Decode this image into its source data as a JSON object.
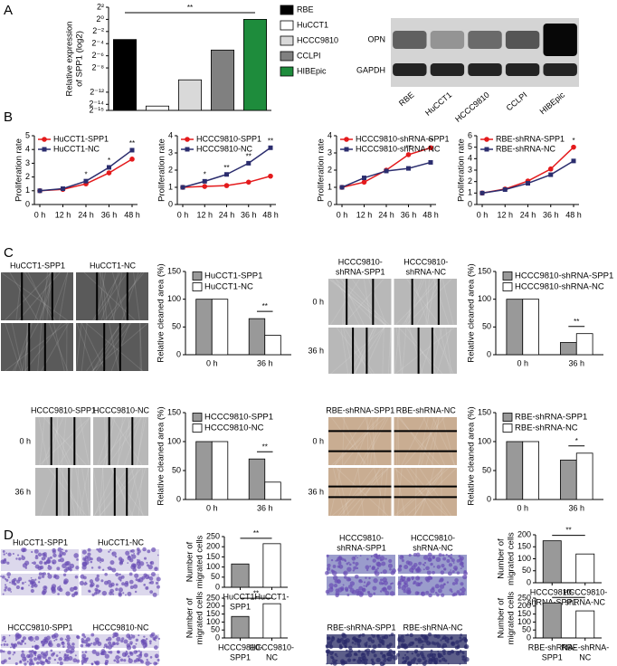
{
  "panel_labels": [
    "A",
    "B",
    "C",
    "D"
  ],
  "blot": {
    "rows": [
      "OPN",
      "GAPDH"
    ],
    "lanes": [
      "RBE",
      "HuCCT1",
      "HCCC9810",
      "CCLPI",
      "HIBEpic"
    ]
  },
  "chart_data": [
    {
      "type": "bar",
      "y_label": [
        "Relative expression",
        "of SPP1 (log2)"
      ],
      "categories": [
        "RBE",
        "HuCCT1",
        "HCCC9810",
        "CCLPI",
        "HIBEpic"
      ],
      "values": [
        0.1,
        5e-05,
        0.001,
        0.03,
        1.0
      ],
      "colors": [
        "#000000",
        "#ffffff",
        "#d9d9d9",
        "#808080",
        "#1e8c3c"
      ],
      "log_base": 2,
      "ylim": [
        3.0517578125e-05,
        4
      ],
      "yticks": [
        {
          "value": 4,
          "label": "2²"
        },
        {
          "value": 1,
          "label": "2⁰"
        },
        {
          "value": 0.25,
          "label": "2⁻²"
        },
        {
          "value": 0.0625,
          "label": "2⁻⁴"
        },
        {
          "value": 0.015625,
          "label": "2⁻⁶"
        },
        {
          "value": 0.00390625,
          "label": "2⁻⁸"
        },
        {
          "value": 0.000244140625,
          "label": "2⁻¹²"
        },
        {
          "value": 6.103515625e-05,
          "label": "2⁻¹⁴"
        },
        {
          "value": 3.0517578125e-05,
          "label": "2⁻¹⁵"
        }
      ],
      "legend": "right",
      "significance": "**"
    },
    {
      "type": "line",
      "y_label": [
        "Proliferation rate"
      ],
      "categories": [
        "0 h",
        "12 h",
        "24 h",
        "36 h",
        "48 h"
      ],
      "ylim": [
        0,
        5
      ],
      "yticks": [
        0,
        1,
        2,
        3,
        4,
        5
      ],
      "legend": "upper left",
      "series": [
        {
          "name": "HuCCT1-SPP1",
          "color": "#e41a1c",
          "marker": "circle",
          "values": [
            1,
            1.1,
            1.5,
            2.3,
            3.3
          ]
        },
        {
          "name": "HuCCT1-NC",
          "color": "#2b2d6e",
          "marker": "square",
          "values": [
            1,
            1.15,
            1.7,
            2.7,
            3.95
          ]
        }
      ],
      "significance": [
        null,
        null,
        "*",
        "*",
        "**"
      ]
    },
    {
      "type": "line",
      "y_label": [
        "Proliferation rate"
      ],
      "categories": [
        "0 h",
        "12 h",
        "24 h",
        "36 h",
        "48 h"
      ],
      "ylim": [
        0,
        4
      ],
      "yticks": [
        0,
        1,
        2,
        3,
        4
      ],
      "legend": "upper left",
      "series": [
        {
          "name": "HCCC9810-SPP1",
          "color": "#e41a1c",
          "marker": "circle",
          "values": [
            1,
            1.05,
            1.1,
            1.3,
            1.65
          ]
        },
        {
          "name": "HCCC9810-NC",
          "color": "#2b2d6e",
          "marker": "square",
          "values": [
            1,
            1.35,
            1.75,
            2.4,
            3.3
          ]
        }
      ],
      "significance": [
        null,
        "*",
        "**",
        "**",
        "**"
      ]
    },
    {
      "type": "line",
      "y_label": [
        "Proliferation rate"
      ],
      "categories": [
        "0 h",
        "12 h",
        "24 h",
        "36 h",
        "48 h"
      ],
      "ylim": [
        0,
        4
      ],
      "yticks": [
        0,
        1,
        2,
        3,
        4
      ],
      "legend": "upper left",
      "series": [
        {
          "name": "HCCC9810-shRNA-SPP1",
          "color": "#e41a1c",
          "marker": "circle",
          "values": [
            1,
            1.3,
            2.0,
            2.9,
            3.3
          ]
        },
        {
          "name": "HCCC9810-shRNA-NC",
          "color": "#2b2d6e",
          "marker": "square",
          "values": [
            1,
            1.55,
            1.95,
            2.1,
            2.45
          ]
        }
      ],
      "significance": [
        null,
        null,
        null,
        "**",
        "**"
      ]
    },
    {
      "type": "line",
      "y_label": [
        "Proliferation rate"
      ],
      "categories": [
        "0 h",
        "12 h",
        "24 h",
        "36 h",
        "48 h"
      ],
      "ylim": [
        0,
        6
      ],
      "yticks": [
        0,
        1,
        2,
        3,
        4,
        5,
        6
      ],
      "legend": "upper left",
      "series": [
        {
          "name": "RBE-shRNA-SPP1",
          "color": "#e41a1c",
          "marker": "circle",
          "values": [
            1,
            1.35,
            2.05,
            3.1,
            5.0
          ]
        },
        {
          "name": "RBE-shRNA-NC",
          "color": "#2b2d6e",
          "marker": "square",
          "values": [
            1,
            1.3,
            1.85,
            2.6,
            3.8
          ]
        }
      ],
      "significance": [
        null,
        null,
        null,
        null,
        "*"
      ]
    },
    {
      "type": "bar",
      "images": {
        "columns": [
          [
            "HuCCT1-SPP1"
          ],
          [
            "HuCCT1-NC"
          ]
        ],
        "style": "scratch-dark"
      },
      "y_label": [
        "Relative cleaned area (%)"
      ],
      "categories": [
        "0 h",
        "36 h"
      ],
      "ylim": [
        0,
        150
      ],
      "yticks": [
        0,
        50,
        100,
        150
      ],
      "legend": "upper right",
      "series": [
        {
          "name": "HuCCT1-SPP1",
          "color": "#999999",
          "values": [
            100,
            65
          ]
        },
        {
          "name": "HuCCT1-NC",
          "color": "#ffffff",
          "values": [
            100,
            35
          ]
        }
      ],
      "significance": "**"
    },
    {
      "type": "bar",
      "images": {
        "columns": [
          [
            "HCCC9810-",
            "shRNA-SPP1"
          ],
          [
            "HCCC9810-",
            "shRNA-NC"
          ]
        ],
        "rows": [
          "0 h",
          "36 h"
        ],
        "style": "scratch-light"
      },
      "y_label": [
        "Relative cleaned area (%)"
      ],
      "categories": [
        "0 h",
        "36 h"
      ],
      "ylim": [
        0,
        150
      ],
      "yticks": [
        0,
        50,
        100,
        150
      ],
      "legend": "upper right",
      "series": [
        {
          "name": "HCCC9810-shRNA-SPP1",
          "color": "#999999",
          "values": [
            100,
            22
          ]
        },
        {
          "name": "HCCC9810-shRNA-NC",
          "color": "#ffffff",
          "values": [
            100,
            38
          ]
        }
      ],
      "significance": "**"
    },
    {
      "type": "bar",
      "images": {
        "columns": [
          [
            "HCCC9810-SPP1"
          ],
          [
            "HCCC9810-NC"
          ]
        ],
        "rows": [
          "0 h",
          "36 h"
        ],
        "style": "scratch-light"
      },
      "y_label": [
        "Relative cleaned area (%)"
      ],
      "categories": [
        "0 h",
        "36 h"
      ],
      "ylim": [
        0,
        150
      ],
      "yticks": [
        0,
        50,
        100,
        150
      ],
      "legend": "upper right",
      "series": [
        {
          "name": "HCCC9810-SPP1",
          "color": "#999999",
          "values": [
            100,
            70
          ]
        },
        {
          "name": "HCCC9810-NC",
          "color": "#ffffff",
          "values": [
            100,
            30
          ]
        }
      ],
      "significance": "**"
    },
    {
      "type": "bar",
      "images": {
        "columns": [
          [
            "RBE-shRNA-SPP1"
          ],
          [
            "RBE-shRNA-NC"
          ]
        ],
        "rows": [
          "0 h",
          "36 h"
        ],
        "style": "scratch-tan"
      },
      "y_label": [
        "Relative cleaned area (%)"
      ],
      "categories": [
        "0 h",
        "36 h"
      ],
      "ylim": [
        0,
        150
      ],
      "yticks": [
        0,
        50,
        100,
        150
      ],
      "legend": "upper right",
      "series": [
        {
          "name": "RBE-shRNA-SPP1",
          "color": "#999999",
          "values": [
            100,
            68
          ]
        },
        {
          "name": "RBE-shRNA-NC",
          "color": "#ffffff",
          "values": [
            100,
            80
          ]
        }
      ],
      "significance": "*"
    },
    {
      "type": "bar",
      "images": {
        "columns": [
          [
            "HuCCT1-SPP1"
          ],
          [
            "HuCCT1-NC"
          ]
        ],
        "style": "stain-light"
      },
      "y_label": [
        "Number of",
        "migrated cells"
      ],
      "categories": [
        [
          "HuCCT1-",
          "SPP1"
        ],
        [
          "HuCCT1-",
          "NC"
        ]
      ],
      "values": [
        115,
        215
      ],
      "colors": [
        "#999999",
        "#ffffff"
      ],
      "ylim": [
        0,
        250
      ],
      "yticks": [
        0,
        50,
        100,
        150,
        200,
        250
      ],
      "significance": "**"
    },
    {
      "type": "bar",
      "images": {
        "columns": [
          [
            "HCCC9810-",
            "shRNA-SPP1"
          ],
          [
            "HCCC9810-",
            "shRNA-NC"
          ]
        ],
        "style": "stain-mid"
      },
      "y_label": [
        "Number of",
        "migrated cells"
      ],
      "categories": [
        [
          "HCCC9810-",
          "shRNA-SPP1"
        ],
        [
          "HCCC9810-",
          "shRNA-NC"
        ]
      ],
      "values": [
        175,
        120
      ],
      "colors": [
        "#999999",
        "#ffffff"
      ],
      "ylim": [
        0,
        200
      ],
      "yticks": [
        0,
        50,
        100,
        150,
        200
      ],
      "significance": "**"
    },
    {
      "type": "bar",
      "images": {
        "columns": [
          [
            "HCCC9810-SPP1"
          ],
          [
            "HCCC9810-NC"
          ]
        ],
        "style": "stain-light"
      },
      "y_label": [
        "Number of",
        "migrated cells"
      ],
      "categories": [
        [
          "HCCC9810-",
          "SPP1"
        ],
        [
          "HCCC9810-",
          "NC"
        ]
      ],
      "values": [
        135,
        215
      ],
      "colors": [
        "#999999",
        "#ffffff"
      ],
      "ylim": [
        0,
        250
      ],
      "yticks": [
        0,
        50,
        100,
        150,
        200,
        250
      ],
      "significance": "**"
    },
    {
      "type": "bar",
      "images": {
        "columns": [
          [
            "RBE-shRNA-SPP1"
          ],
          [
            "RBE-shRNA-NC"
          ]
        ],
        "style": "stain-dark"
      },
      "y_label": [
        "Number of",
        "migrated cells"
      ],
      "categories": [
        [
          "RBE-shRNA-",
          "SPP1"
        ],
        [
          "RBE-shRNA-",
          "NC"
        ]
      ],
      "values": [
        220,
        170
      ],
      "colors": [
        "#999999",
        "#ffffff"
      ],
      "ylim": [
        0,
        250
      ],
      "yticks": [
        0,
        50,
        100,
        150,
        200,
        250
      ],
      "significance": "**"
    }
  ]
}
